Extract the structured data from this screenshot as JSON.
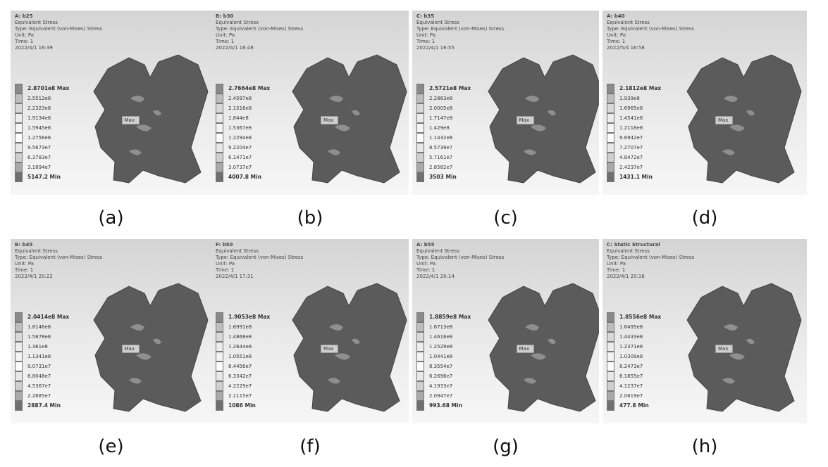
{
  "panels": [
    {
      "header": [
        "A: b25",
        "Equivalent Stress",
        "Type: Equivalent (von-Mises) Stress",
        "Unit: Pa",
        "Time: 1",
        "2022/4/1 16:39"
      ],
      "legend": [
        "2.8701e8 Max",
        "2.5512e8",
        "2.2323e8",
        "1.9134e8",
        "1.5945e8",
        "1.2756e8",
        "9.5673e7",
        "6.3783e7",
        "3.1894e7",
        "5147.2 Min"
      ],
      "probe": "Max",
      "caption": "(a)"
    },
    {
      "header": [
        "B: b30",
        "Equivalent Stress",
        "Type: Equivalent (von-Mises) Stress",
        "Unit: Pa",
        "Time: 1",
        "2022/4/1 16:48"
      ],
      "legend": [
        "2.7664e8 Max",
        "2.4597e8",
        "2.1516e8",
        "1.844e8",
        "1.5367e8",
        "1.2294e8",
        "9.2204e7",
        "6.1471e7",
        "3.0737e7",
        "4007.8 Min"
      ],
      "probe": "Max",
      "caption": "(b)"
    },
    {
      "header": [
        "C: b35",
        "Equivalent Stress",
        "Type: Equivalent (von-Mises) Stress",
        "Unit: Pa",
        "Time: 1",
        "2022/4/1 16:55"
      ],
      "legend": [
        "2.5721e8 Max",
        "2.2863e8",
        "2.0005e8",
        "1.7147e8",
        "1.429e8",
        "1.1432e8",
        "8.5739e7",
        "5.7161e7",
        "2.8582e7",
        "3503 Min"
      ],
      "probe": "Max",
      "caption": "(c)"
    },
    {
      "header": [
        "A: b40",
        "Equivalent Stress",
        "Type: Equivalent (von-Mises) Stress",
        "Unit: Pa",
        "Time: 1",
        "2022/5/4 16:58"
      ],
      "legend": [
        "2.1812e8 Max",
        "1.939e8",
        "1.6965e8",
        "1.4541e8",
        "1.2118e8",
        "9.6942e7",
        "7.2707e7",
        "4.8472e7",
        "2.4237e7",
        "1431.1 Min"
      ],
      "probe": "Max",
      "caption": "(d)"
    },
    {
      "header": [
        "B: b45",
        "Equivalent Stress",
        "Type: Equivalent (von-Mises) Stress",
        "Unit: Pa",
        "Time: 1",
        "2022/4/1 20:22"
      ],
      "legend": [
        "2.0414e8 Max",
        "1.8146e8",
        "1.5878e8",
        "1.361e8",
        "1.1341e8",
        "9.0731e7",
        "6.8048e7",
        "4.5367e7",
        "2.2685e7",
        "2887.4 Min"
      ],
      "probe": "Max",
      "caption": "(e)"
    },
    {
      "header": [
        "F: b50",
        "Equivalent Stress",
        "Type: Equivalent (von-Mises) Stress",
        "Unit: Pa",
        "Time: 1",
        "2022/4/1 17:31"
      ],
      "legend": [
        "1.9053e8 Max",
        "1.6991e8",
        "1.4868e8",
        "1.2644e8",
        "1.0551e8",
        "8.4456e7",
        "6.3342e7",
        "4.2229e7",
        "2.1115e7",
        "1086 Min"
      ],
      "probe": "Max",
      "caption": "(f)"
    },
    {
      "header": [
        "A: b55",
        "Equivalent Stress",
        "Type: Equivalent (von-Mises) Stress",
        "Unit: Pa",
        "Time: 1",
        "2022/4/1 20:14"
      ],
      "legend": [
        "1.8859e8 Max",
        "1.6713e8",
        "1.4616e8",
        "1.2529e8",
        "1.0441e8",
        "8.3554e7",
        "6.2696e7",
        "4.1933e7",
        "2.0947e7",
        "993.68 Min"
      ],
      "probe": "Max",
      "caption": "(g)"
    },
    {
      "header": [
        "C: Static Structural",
        "Equivalent Stress",
        "Type: Equivalent (von-Mises) Stress",
        "Unit: Pa",
        "Time: 1",
        "2022/4/1 20:16"
      ],
      "legend": [
        "1.8556e8 Max",
        "1.6495e8",
        "1.4433e8",
        "1.2371e8",
        "1.0309e8",
        "8.2473e7",
        "6.1855e7",
        "4.1237e7",
        "2.0619e7",
        "477.8 Min"
      ],
      "probe": "Max",
      "caption": "(h)"
    }
  ]
}
